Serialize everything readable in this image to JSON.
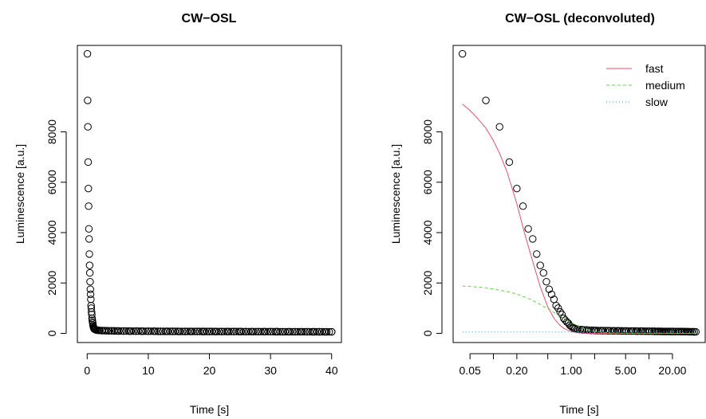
{
  "chart_data": [
    {
      "type": "scatter",
      "title": "CW−OSL",
      "xlabel": "Time [s]",
      "ylabel": "Luminescence [a.u.]",
      "xlim": [
        0,
        40
      ],
      "ylim": [
        0,
        9100
      ],
      "x_scale": "linear",
      "x_ticks": [
        0,
        10,
        20,
        30,
        40
      ],
      "x_tick_labels": [
        "0",
        "10",
        "20",
        "30",
        "40"
      ],
      "y_ticks": [
        0,
        2000,
        4000,
        6000,
        8000
      ],
      "y_tick_labels": [
        "0",
        "2000",
        "4000",
        "6000",
        "8000"
      ],
      "grid": false,
      "series": [
        {
          "values_x": [
            0.04,
            0.08,
            0.12,
            0.16,
            0.2,
            0.24,
            0.28,
            0.32,
            0.36,
            0.4,
            0.44,
            0.48,
            0.52,
            0.56,
            0.6,
            0.64,
            0.68,
            0.72,
            0.76,
            0.8,
            0.84,
            0.88,
            0.92,
            0.96,
            1.0,
            1.04,
            1.08,
            1.12,
            1.2,
            1.3,
            1.4,
            1.6,
            1.8,
            2.0,
            2.5,
            3.0,
            3.5,
            4.0,
            4.5,
            5.0,
            6.0,
            7.0,
            8.0,
            9.0,
            10.0,
            11.0,
            12.0,
            13.0,
            14.0,
            15.0,
            16.0,
            17.0,
            18.0,
            19.0,
            20.0,
            21.0,
            22.0,
            23.0,
            24.0,
            25.0,
            26.0,
            27.0,
            28.0,
            29.0,
            30.0,
            31.0,
            32.0,
            33.0,
            34.0,
            35.0,
            36.0,
            37.0,
            38.0,
            39.0,
            40.0
          ],
          "values_y": [
            11100,
            9250,
            8200,
            6800,
            5750,
            5050,
            4150,
            3750,
            3150,
            2700,
            2400,
            2050,
            1750,
            1550,
            1350,
            1100,
            1000,
            850,
            750,
            600,
            520,
            450,
            400,
            320,
            280,
            240,
            210,
            190,
            170,
            150,
            140,
            130,
            120,
            115,
            110,
            105,
            100,
            100,
            98,
            95,
            92,
            90,
            88,
            86,
            85,
            84,
            82,
            80,
            80,
            78,
            78,
            77,
            76,
            75,
            75,
            74,
            73,
            72,
            72,
            71,
            70,
            70,
            69,
            68,
            68,
            67,
            66,
            66,
            65,
            65,
            64,
            63,
            63,
            62,
            62
          ]
        }
      ]
    },
    {
      "type": "line",
      "title": "CW−OSL (deconvoluted)",
      "xlabel": "Time [s]",
      "ylabel": "Luminescence [a.u.]",
      "xlim": [
        0.04,
        40
      ],
      "ylim": [
        0,
        9100
      ],
      "x_scale": "log",
      "x_ticks": [
        0.05,
        0.2,
        1.0,
        5.0,
        20.0
      ],
      "x_tick_labels": [
        "0.05",
        "0.20",
        "1.00",
        "5.00",
        "20.00"
      ],
      "x_minor_ticks": [
        0.1,
        0.5,
        2.0,
        10.0
      ],
      "y_ticks": [
        0,
        2000,
        4000,
        6000,
        8000
      ],
      "y_tick_labels": [
        "0",
        "2000",
        "4000",
        "6000",
        "8000"
      ],
      "grid": false,
      "legend": {
        "position": "top-right",
        "entries": [
          "fast",
          "medium",
          "slow"
        ]
      },
      "points": {
        "x": [
          0.04,
          0.08,
          0.12,
          0.16,
          0.2,
          0.24,
          0.28,
          0.32,
          0.36,
          0.4,
          0.44,
          0.48,
          0.52,
          0.56,
          0.6,
          0.64,
          0.68,
          0.72,
          0.76,
          0.8,
          0.84,
          0.88,
          0.92,
          0.96,
          1.0,
          1.04,
          1.08,
          1.12,
          1.2,
          1.3,
          1.4,
          1.6,
          1.8,
          2.0,
          2.5,
          3.0,
          3.5,
          4.0,
          4.5,
          5.0,
          6.0,
          7.0,
          8.0,
          9.0,
          10.0,
          11.0,
          12.0,
          13.0,
          14.0,
          15.0,
          16.0,
          17.0,
          18.0,
          19.0,
          20.0,
          22.0,
          24.0,
          26.0,
          28.0,
          30.0,
          32.0,
          34.0,
          36.0,
          38.0,
          40.0
        ],
        "y": [
          11100,
          9250,
          8200,
          6800,
          5750,
          5050,
          4150,
          3750,
          3150,
          2700,
          2400,
          2050,
          1750,
          1550,
          1350,
          1100,
          1000,
          850,
          750,
          600,
          520,
          450,
          400,
          320,
          280,
          240,
          210,
          190,
          170,
          150,
          140,
          130,
          120,
          115,
          110,
          105,
          100,
          100,
          98,
          95,
          92,
          90,
          88,
          86,
          85,
          84,
          82,
          80,
          80,
          78,
          78,
          77,
          76,
          75,
          75,
          73,
          72,
          71,
          70,
          68,
          67,
          66,
          65,
          63,
          62
        ]
      },
      "series": [
        {
          "name": "fast",
          "color": "#DF536B",
          "dash": "solid",
          "x": [
            0.04,
            0.05,
            0.06,
            0.08,
            0.1,
            0.12,
            0.15,
            0.2,
            0.25,
            0.3,
            0.35,
            0.4,
            0.5,
            0.6,
            0.7,
            0.8,
            1.0,
            1.2,
            1.5,
            2.0,
            3.0,
            5.0,
            10.0,
            20.0,
            40.0
          ],
          "y": [
            9100,
            8850,
            8600,
            8150,
            7650,
            7150,
            6400,
            5150,
            4000,
            3150,
            2450,
            1850,
            1050,
            600,
            350,
            200,
            70,
            25,
            5,
            0,
            0,
            0,
            0,
            0,
            0
          ]
        },
        {
          "name": "medium",
          "color": "#61D04F",
          "dash": "dashed",
          "x": [
            0.04,
            0.05,
            0.07,
            0.1,
            0.15,
            0.2,
            0.3,
            0.4,
            0.5,
            0.7,
            1.0,
            1.5,
            2.0,
            3.0,
            5.0,
            10.0,
            20.0,
            40.0
          ],
          "y": [
            1880,
            1860,
            1830,
            1760,
            1660,
            1560,
            1350,
            1150,
            980,
            700,
            420,
            180,
            75,
            10,
            0,
            0,
            0,
            0
          ]
        },
        {
          "name": "slow",
          "color": "#2297E6",
          "dash": "dotted",
          "x": [
            0.04,
            0.1,
            0.5,
            1.0,
            5.0,
            10.0,
            20.0,
            40.0
          ],
          "y": [
            55,
            55,
            55,
            54,
            52,
            50,
            47,
            42
          ]
        }
      ]
    }
  ]
}
